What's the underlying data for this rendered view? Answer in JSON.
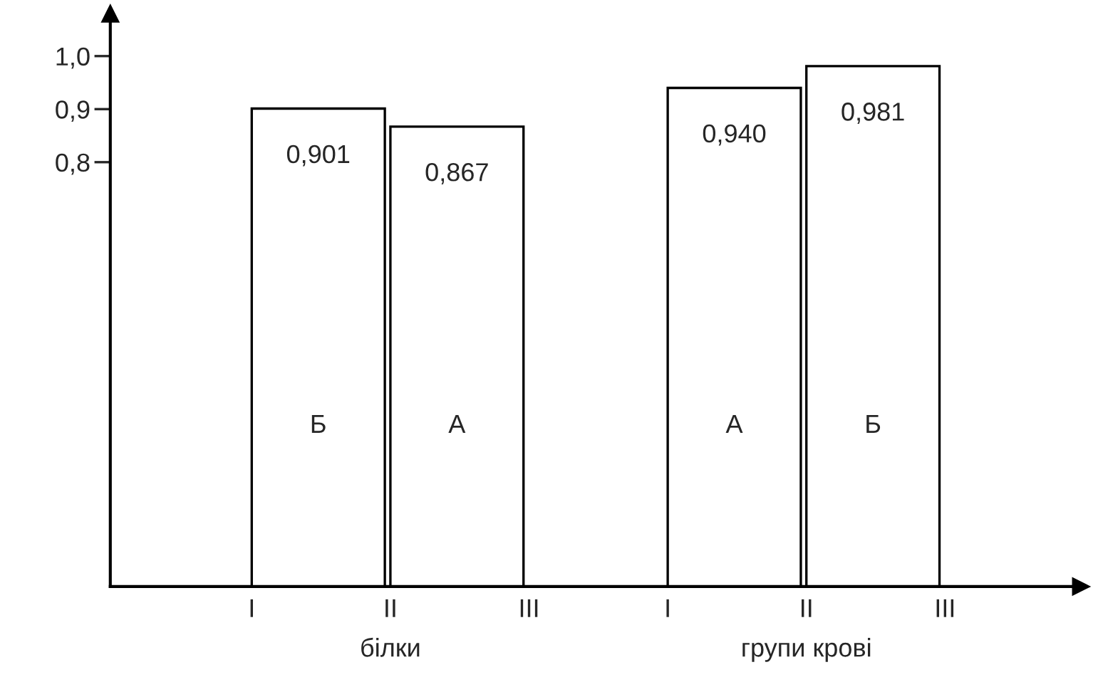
{
  "chart_data": {
    "type": "bar",
    "categories": [
      null,
      null,
      null,
      null,
      null,
      null,
      null
    ],
    "values": [
      null,
      0.901,
      0.867,
      null,
      0.94,
      0.981,
      null
    ],
    "value_labels": [
      null,
      "0,901",
      "0,867",
      null,
      "0,940",
      "0,981",
      null
    ],
    "color": "#ffffff",
    "ylim": [
      0,
      1.08
    ],
    "yticks": [
      {
        "value": 0.8,
        "label": "0,8"
      },
      {
        "value": 0.9,
        "label": "0,9"
      },
      {
        "value": 1.0,
        "label": "1,0"
      }
    ],
    "tick_labels": "y",
    "annotations": [
      "Б",
      "А",
      "А",
      "Б",
      "I",
      "II",
      "III",
      "I",
      "II",
      "III",
      "білки",
      "групи крові"
    ],
    "grid": false,
    "legend": false
  }
}
